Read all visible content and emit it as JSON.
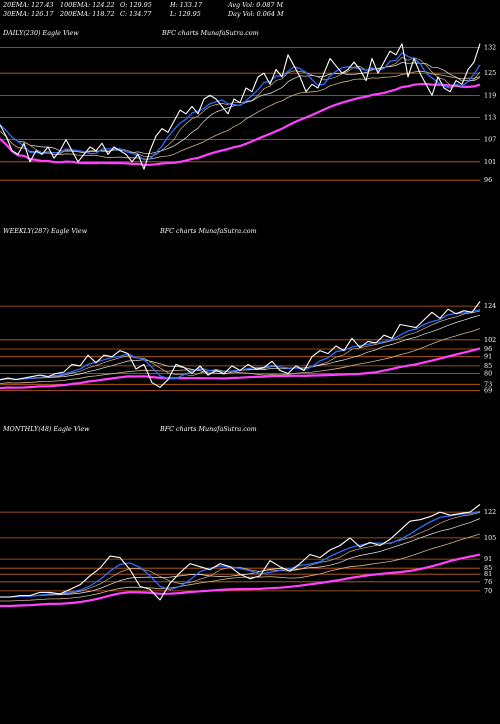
{
  "header": {
    "row1": [
      {
        "key": "20EMA",
        "text": "20EMA: 127.43"
      },
      {
        "key": "100EMA",
        "text": "100EMA: 124.22"
      },
      {
        "key": "open",
        "text": "O: 129.95"
      },
      {
        "key": "high",
        "text": "H: 133.17"
      },
      {
        "key": "avgvol",
        "text": "Avg Vol: 0.087 M"
      }
    ],
    "row2": [
      {
        "key": "30EMA",
        "text": "30EMA: 126.17"
      },
      {
        "key": "200EMA",
        "text": "200EMA: 118.72"
      },
      {
        "key": "close",
        "text": "C: 134.77"
      },
      {
        "key": "low",
        "text": "L: 129.95"
      },
      {
        "key": "dayvol",
        "text": "Day Vol: 0.064  M"
      }
    ]
  },
  "colors": {
    "background": "#000000",
    "price": "#ffffff",
    "level_line": "#c8641e",
    "ema_fast": "#2f6bff",
    "ema_slow": "#ff40ff",
    "ema_mid": "#d2b48c",
    "ema_white": "#e8e8e8"
  },
  "chart_data": [
    {
      "type": "line",
      "label": "DAILY(230) Eagle  View",
      "watermark": "BFC charts MunafaSutra.com",
      "y_ticks": [
        132,
        125,
        119,
        113,
        107,
        101,
        96
      ],
      "ylim": [
        92,
        134
      ],
      "series_last": {
        "close": 134.77,
        "ema20": 127.43,
        "ema30": 126.17,
        "ema100": 124.22,
        "ema200": 118.72
      },
      "price_path": [
        [
          0,
          111
        ],
        [
          6,
          108
        ],
        [
          12,
          104
        ],
        [
          18,
          103
        ],
        [
          24,
          106
        ],
        [
          30,
          101
        ],
        [
          36,
          104
        ],
        [
          42,
          103
        ],
        [
          48,
          105
        ],
        [
          54,
          102
        ],
        [
          60,
          104
        ],
        [
          66,
          107
        ],
        [
          72,
          104
        ],
        [
          78,
          101
        ],
        [
          84,
          103
        ],
        [
          90,
          105
        ],
        [
          96,
          104
        ],
        [
          102,
          106
        ],
        [
          108,
          103
        ],
        [
          114,
          105
        ],
        [
          120,
          104
        ],
        [
          126,
          103
        ],
        [
          132,
          101
        ],
        [
          138,
          103
        ],
        [
          144,
          99
        ],
        [
          150,
          104
        ],
        [
          156,
          108
        ],
        [
          162,
          110
        ],
        [
          168,
          109
        ],
        [
          174,
          112
        ],
        [
          180,
          115
        ],
        [
          186,
          114
        ],
        [
          192,
          116
        ],
        [
          198,
          114
        ],
        [
          204,
          118
        ],
        [
          210,
          119
        ],
        [
          216,
          118
        ],
        [
          222,
          116
        ],
        [
          228,
          114
        ],
        [
          234,
          118
        ],
        [
          240,
          117
        ],
        [
          246,
          121
        ],
        [
          252,
          120
        ],
        [
          258,
          124
        ],
        [
          264,
          125
        ],
        [
          270,
          122
        ],
        [
          276,
          126
        ],
        [
          282,
          124
        ],
        [
          288,
          130
        ],
        [
          294,
          127
        ],
        [
          300,
          124
        ],
        [
          306,
          120
        ],
        [
          312,
          122
        ],
        [
          318,
          121
        ],
        [
          324,
          125
        ],
        [
          330,
          129
        ],
        [
          336,
          127
        ],
        [
          342,
          125
        ],
        [
          348,
          126
        ],
        [
          354,
          128
        ],
        [
          360,
          126
        ],
        [
          366,
          123
        ],
        [
          372,
          129
        ],
        [
          378,
          125
        ],
        [
          384,
          128
        ],
        [
          390,
          131
        ],
        [
          396,
          130
        ],
        [
          402,
          133
        ],
        [
          408,
          124
        ],
        [
          414,
          129
        ],
        [
          420,
          125
        ],
        [
          426,
          122
        ],
        [
          432,
          119
        ],
        [
          438,
          124
        ],
        [
          444,
          121
        ],
        [
          450,
          120
        ],
        [
          456,
          123
        ],
        [
          462,
          122
        ],
        [
          468,
          126
        ],
        [
          474,
          128
        ],
        [
          480,
          133
        ]
      ]
    },
    {
      "type": "line",
      "label": "WEEKLY(287) Eagle  View",
      "watermark": "BFC charts MunafaSutra.com",
      "y_ticks": [
        124,
        102,
        96,
        91,
        85,
        80,
        73,
        69
      ],
      "ylim": [
        66,
        128
      ],
      "price_path": [
        [
          0,
          76
        ],
        [
          8,
          77
        ],
        [
          16,
          76
        ],
        [
          24,
          77
        ],
        [
          32,
          78
        ],
        [
          40,
          79
        ],
        [
          48,
          78
        ],
        [
          56,
          80
        ],
        [
          64,
          81
        ],
        [
          72,
          86
        ],
        [
          80,
          85
        ],
        [
          88,
          92
        ],
        [
          96,
          87
        ],
        [
          104,
          92
        ],
        [
          112,
          91
        ],
        [
          120,
          95
        ],
        [
          128,
          93
        ],
        [
          136,
          83
        ],
        [
          144,
          86
        ],
        [
          152,
          74
        ],
        [
          160,
          71
        ],
        [
          168,
          76
        ],
        [
          176,
          86
        ],
        [
          184,
          84
        ],
        [
          192,
          80
        ],
        [
          200,
          85
        ],
        [
          208,
          79
        ],
        [
          216,
          82
        ],
        [
          224,
          80
        ],
        [
          232,
          85
        ],
        [
          240,
          82
        ],
        [
          248,
          86
        ],
        [
          256,
          83
        ],
        [
          264,
          84
        ],
        [
          272,
          88
        ],
        [
          280,
          82
        ],
        [
          288,
          80
        ],
        [
          296,
          85
        ],
        [
          304,
          82
        ],
        [
          312,
          91
        ],
        [
          320,
          95
        ],
        [
          328,
          93
        ],
        [
          336,
          98
        ],
        [
          344,
          95
        ],
        [
          352,
          103
        ],
        [
          360,
          97
        ],
        [
          368,
          101
        ],
        [
          376,
          100
        ],
        [
          384,
          105
        ],
        [
          392,
          103
        ],
        [
          400,
          112
        ],
        [
          408,
          111
        ],
        [
          416,
          110
        ],
        [
          424,
          115
        ],
        [
          432,
          120
        ],
        [
          440,
          116
        ],
        [
          448,
          122
        ],
        [
          456,
          119
        ],
        [
          464,
          121
        ],
        [
          472,
          120
        ],
        [
          480,
          127
        ]
      ]
    },
    {
      "type": "line",
      "label": "MONTHLY(48) Eagle  View",
      "watermark": "BFC charts MunafaSutra.com",
      "y_ticks": [
        122,
        105,
        91,
        85,
        81,
        76,
        70
      ],
      "ylim": [
        64,
        130
      ],
      "price_path": [
        [
          0,
          66
        ],
        [
          10,
          66
        ],
        [
          20,
          67
        ],
        [
          30,
          67
        ],
        [
          40,
          69
        ],
        [
          50,
          69
        ],
        [
          60,
          68
        ],
        [
          70,
          71
        ],
        [
          80,
          74
        ],
        [
          90,
          80
        ],
        [
          100,
          85
        ],
        [
          110,
          93
        ],
        [
          120,
          92
        ],
        [
          130,
          84
        ],
        [
          140,
          73
        ],
        [
          150,
          71
        ],
        [
          160,
          64
        ],
        [
          170,
          75
        ],
        [
          180,
          82
        ],
        [
          190,
          88
        ],
        [
          200,
          86
        ],
        [
          210,
          84
        ],
        [
          220,
          88
        ],
        [
          230,
          86
        ],
        [
          240,
          81
        ],
        [
          250,
          78
        ],
        [
          260,
          80
        ],
        [
          270,
          90
        ],
        [
          280,
          86
        ],
        [
          290,
          83
        ],
        [
          300,
          88
        ],
        [
          310,
          94
        ],
        [
          320,
          92
        ],
        [
          330,
          97
        ],
        [
          340,
          100
        ],
        [
          350,
          105
        ],
        [
          360,
          99
        ],
        [
          370,
          102
        ],
        [
          380,
          100
        ],
        [
          390,
          104
        ],
        [
          400,
          110
        ],
        [
          410,
          116
        ],
        [
          420,
          117
        ],
        [
          430,
          119
        ],
        [
          440,
          122
        ],
        [
          450,
          120
        ],
        [
          460,
          121
        ],
        [
          470,
          122
        ],
        [
          480,
          127
        ]
      ]
    }
  ]
}
